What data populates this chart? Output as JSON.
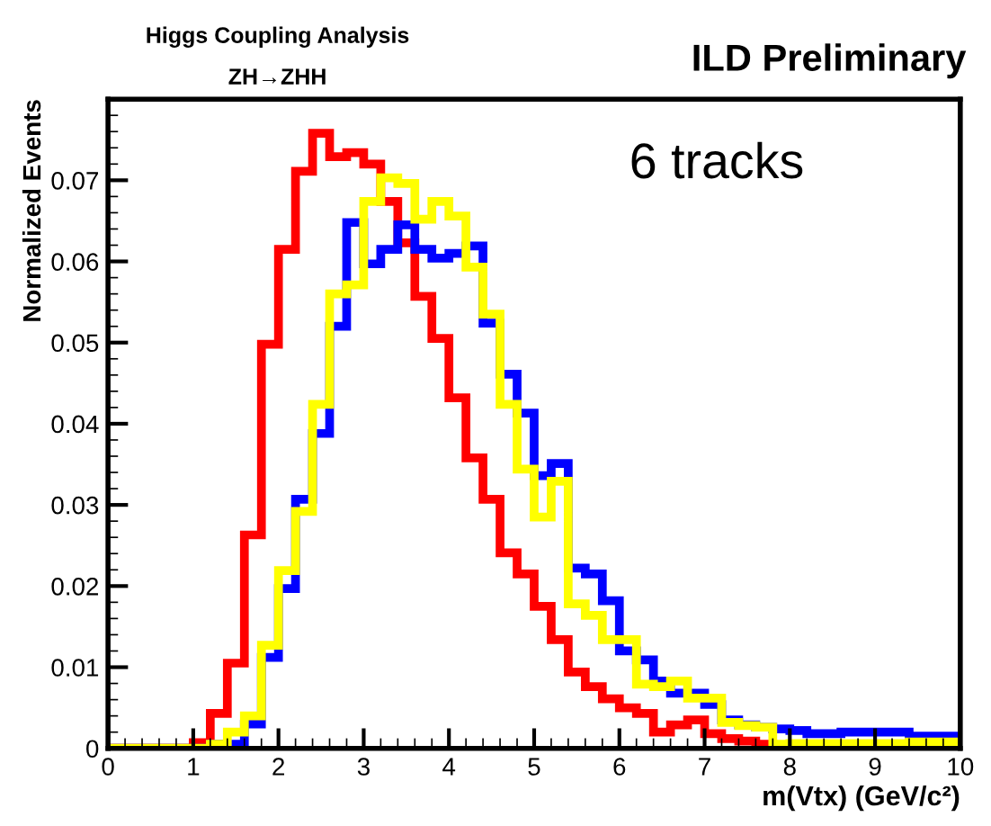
{
  "chart_data": {
    "type": "histogram",
    "title": "ILD Preliminary",
    "xlabel": "m(Vtx) (GeV/c²)",
    "ylabel": "Normalized Events",
    "annotations": [
      "Higgs Coupling Analysis",
      "ZH→ZHH",
      "6 tracks"
    ],
    "bins": [
      0,
      0.2,
      0.4,
      0.6,
      0.8,
      1.0,
      1.2,
      1.4,
      1.6,
      1.8,
      2.0,
      2.2,
      2.4,
      2.6,
      2.8,
      3.0,
      3.2,
      3.4,
      3.6,
      3.8,
      4.0,
      4.2,
      4.4,
      4.6,
      4.8,
      5.0,
      5.2,
      5.4,
      5.6,
      5.8,
      6.0,
      6.2,
      6.4,
      6.6,
      6.8,
      7.0,
      7.2,
      7.4,
      7.6,
      7.8,
      8.0,
      8.2,
      8.4,
      8.6,
      8.8,
      9.0,
      9.2,
      9.4,
      9.6,
      9.8,
      10
    ],
    "series": [
      {
        "color": "#ff0000",
        "values": [
          0,
          0,
          0,
          0,
          0,
          0.0007,
          0.0043,
          0.0105,
          0.0263,
          0.0498,
          0.0615,
          0.0711,
          0.0758,
          0.0729,
          0.0734,
          0.072,
          0.0674,
          0.0623,
          0.0557,
          0.0505,
          0.0432,
          0.0358,
          0.0307,
          0.0241,
          0.0215,
          0.0175,
          0.0134,
          0.0094,
          0.0076,
          0.0061,
          0.005,
          0.0043,
          0.002,
          0.0029,
          0.0035,
          0.0018,
          0.0012,
          0.0009,
          0.0005,
          0,
          0,
          0,
          0,
          0,
          0,
          0,
          0,
          0,
          0,
          0
        ]
      },
      {
        "color": "#0000ff",
        "values": [
          0,
          0,
          0,
          0,
          0,
          0,
          0.0005,
          0.0005,
          0.003,
          0.0112,
          0.0197,
          0.0307,
          0.0388,
          0.052,
          0.0648,
          0.0597,
          0.0615,
          0.0645,
          0.0615,
          0.0604,
          0.061,
          0.0619,
          0.0524,
          0.0461,
          0.0413,
          0.0336,
          0.0351,
          0.0222,
          0.0215,
          0.0182,
          0.012,
          0.0109,
          0.0083,
          0.0068,
          0.0068,
          0.0054,
          0.0035,
          0.0029,
          0.0026,
          0.0024,
          0.0022,
          0.0018,
          0.0018,
          0.002,
          0.002,
          0.002,
          0.002,
          0.0015,
          0.0015,
          0.0015
        ]
      },
      {
        "color": "#ffff00",
        "values": [
          0,
          0,
          0,
          0,
          0,
          0,
          0.0005,
          0.002,
          0.004,
          0.0127,
          0.0219,
          0.0292,
          0.0424,
          0.056,
          0.0571,
          0.0674,
          0.0703,
          0.0696,
          0.0652,
          0.0674,
          0.0656,
          0.0593,
          0.0535,
          0.0424,
          0.0344,
          0.0285,
          0.0329,
          0.0178,
          0.0164,
          0.0134,
          0.0134,
          0.0079,
          0.0076,
          0.0083,
          0.0062,
          0.0062,
          0.0032,
          0.0028,
          0.0026,
          0.0005,
          0.0006,
          0.0006,
          0.0006,
          0.0006,
          0.0006,
          0.0006,
          0.0006,
          0.0008,
          0.0008,
          0.0008
        ]
      }
    ],
    "xlim": [
      0,
      10
    ],
    "xticks": [
      0,
      1,
      2,
      3,
      4,
      5,
      6,
      7,
      8,
      9,
      10
    ],
    "ylim": [
      0,
      0.08
    ],
    "yticks": [
      0,
      0.01,
      0.02,
      0.03,
      0.04,
      0.05,
      0.06,
      0.07
    ],
    "grid": false,
    "legend": false
  }
}
